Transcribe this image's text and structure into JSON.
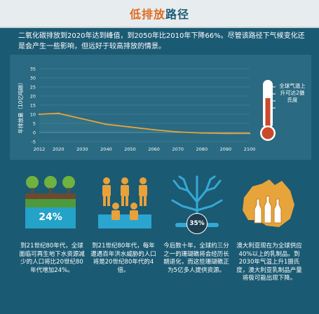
{
  "title": {
    "part1": "低排放",
    "part2": "路径"
  },
  "intro": "二氧化碳排放到2020年达到峰值，到2050年比2010年下降66%。尽管该路径下气候变化还是会产生一些影响，但远好于较高排放的情景。",
  "thermometer_note": "全球气温上升可达2摄氏度",
  "facts": [
    {
      "badge": "24%",
      "text": "到21世纪80年代，全球面临可再生地下水资源减少的人口将比20世纪80年代增加24%。"
    },
    {
      "text": "到21世纪80年代，每年遭遇百年洪水威胁的人口将是20世纪80年代的4倍。"
    },
    {
      "badge": "35%",
      "text": "今后数十年，全球约三分之一的珊瑚礁将会经历长期退化，而这些珊瑚礁正为5亿多人提供资源。"
    },
    {
      "text": "澳大利亚现在为全球供应40%以上的乳制品。到2030年气温上升1摄氏度，澳大利亚乳制品产量将极可能出现下降。"
    }
  ],
  "colors": {
    "bg": "#1b5a73",
    "panel": "#2a6a82",
    "line": "#e6a23a",
    "accent": "#e06b1f"
  },
  "chart_data": {
    "type": "line",
    "ylabel": "年排放量（10亿吨碳）",
    "xlabel": "",
    "x": [
      2012,
      2020,
      2030,
      2040,
      2050,
      2060,
      2070,
      2080,
      2090,
      2100
    ],
    "series": [
      {
        "values": [
          10,
          10.5,
          7.5,
          4.5,
          3,
          1.5,
          0.3,
          -0.3,
          -0.5,
          -0.5
        ]
      }
    ],
    "ylim": [
      -5,
      35
    ],
    "yticks": [
      -5,
      0,
      5,
      10,
      15,
      20,
      25,
      30,
      35
    ],
    "grid": true
  }
}
